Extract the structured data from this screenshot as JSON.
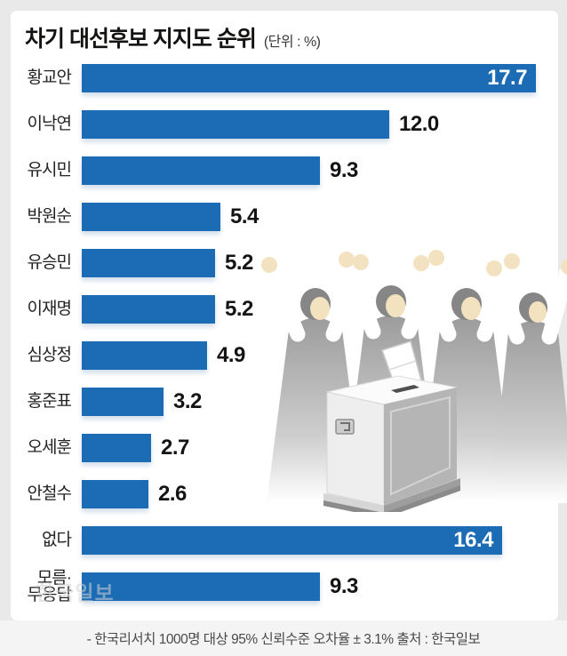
{
  "title": {
    "text": "차기 대선후보 지지도 순위",
    "unit": "(단위 : %)"
  },
  "watermark": "한국일보",
  "footer": {
    "text": "- 한국리서치 1000명 대상 95% 신뢰수준 오차율 ± 3.1% 출처 : 한국일보"
  },
  "colors": {
    "bar": "#1b6cb5",
    "value_inside": "#ffffff",
    "value_outside": "#141414",
    "panel_bg": "#ffffff",
    "page_bg": "#e9e9e9",
    "footer_bg": "#f4f4f4"
  },
  "icons": {
    "illustration": "cheering-crowd-and-ballot-box"
  },
  "chart_data": {
    "type": "bar",
    "orientation": "horizontal",
    "title": "차기 대선후보 지지도 순위",
    "unit_label": "(단위 : %)",
    "xlim": [
      0,
      17.7
    ],
    "grid": false,
    "legend": false,
    "categories": [
      "황교안",
      "이낙연",
      "유시민",
      "박원순",
      "유승민",
      "이재명",
      "심상정",
      "홍준표",
      "오세훈",
      "안철수",
      "없다",
      "모름·\n무응답"
    ],
    "values": [
      17.7,
      12.0,
      9.3,
      5.4,
      5.2,
      5.2,
      4.9,
      3.2,
      2.7,
      2.6,
      16.4,
      9.3
    ],
    "value_inside_bar": [
      true,
      false,
      false,
      false,
      false,
      false,
      false,
      false,
      false,
      false,
      true,
      false
    ],
    "bar_color": "#1b6cb5"
  }
}
